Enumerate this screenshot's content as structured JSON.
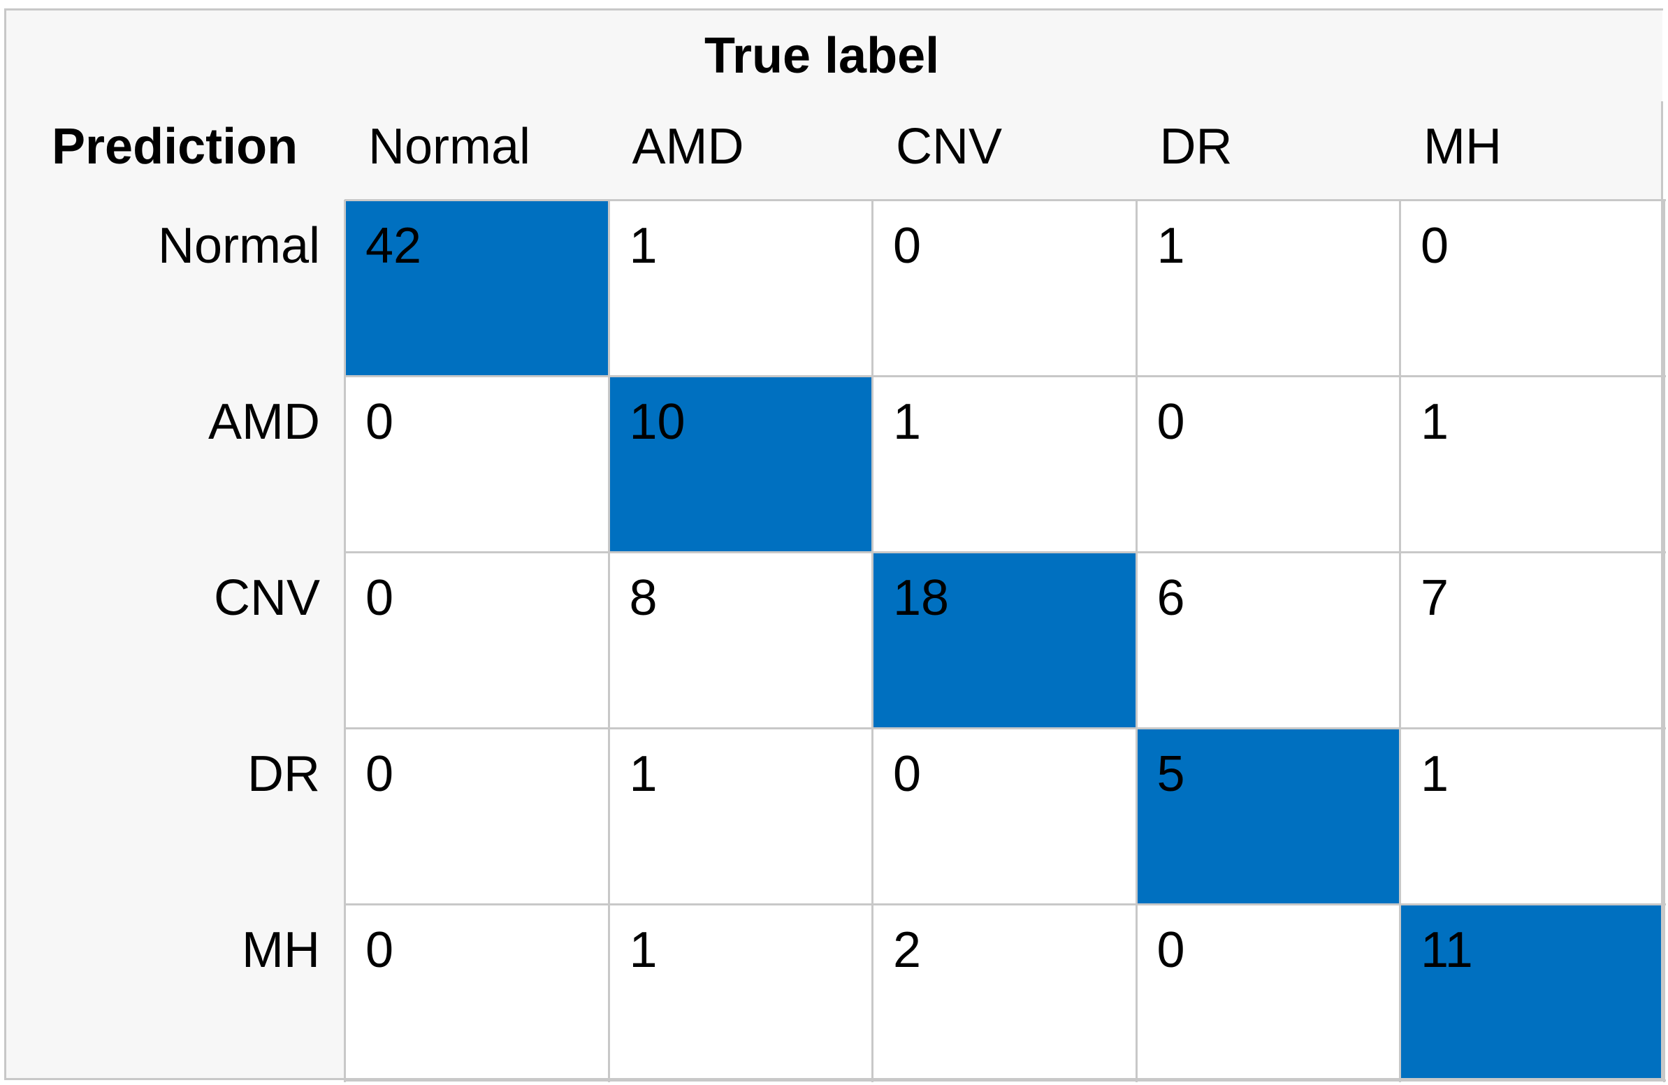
{
  "chart_data": {
    "type": "table",
    "title": "True label",
    "corner_label": "Prediction",
    "columns": [
      "Normal",
      "AMD",
      "CNV",
      "DR",
      "MH"
    ],
    "rows": [
      "Normal",
      "AMD",
      "CNV",
      "DR",
      "MH"
    ],
    "values": [
      [
        42,
        1,
        0,
        1,
        0
      ],
      [
        0,
        10,
        1,
        0,
        1
      ],
      [
        0,
        8,
        18,
        6,
        7
      ],
      [
        0,
        1,
        0,
        5,
        1
      ],
      [
        0,
        1,
        2,
        0,
        11
      ]
    ],
    "highlight": "diagonal",
    "colors": {
      "highlight": "#0070c0",
      "header_bg": "#f7f7f7",
      "grid": "#c8c8c8"
    }
  }
}
